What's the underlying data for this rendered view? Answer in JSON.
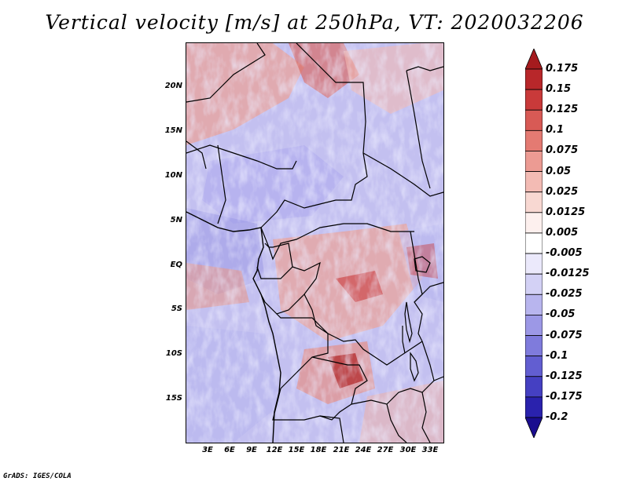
{
  "title": "Vertical velocity [m/s] at 250hPa, VT: 2020032206",
  "credit": "GrADS: IGES/COLA",
  "lat_labels": [
    "20N",
    "15N",
    "10N",
    "5N",
    "EQ",
    "5S",
    "10S",
    "15S"
  ],
  "lon_labels": [
    "3E",
    "6E",
    "9E",
    "12E",
    "15E",
    "18E",
    "21E",
    "24E",
    "27E",
    "30E",
    "33E"
  ],
  "colorbar": {
    "labels": [
      "0.175",
      "0.15",
      "0.125",
      "0.1",
      "0.075",
      "0.05",
      "0.025",
      "0.0125",
      "0.005",
      "-0.005",
      "-0.0125",
      "-0.025",
      "-0.05",
      "-0.075",
      "-0.1",
      "-0.125",
      "-0.175",
      "-0.2"
    ],
    "colors": [
      "#a51b1e",
      "#b8272a",
      "#c93a3a",
      "#d85a55",
      "#e47a72",
      "#ec9b93",
      "#f3bbb4",
      "#f8d8d2",
      "#fdf0ee",
      "#ffffff",
      "#ebe9fb",
      "#d3d1f5",
      "#b8b5ee",
      "#9c98e6",
      "#7f7bdc",
      "#625ed1",
      "#4540c2",
      "#2a22ad",
      "#1a0d8f"
    ]
  }
}
